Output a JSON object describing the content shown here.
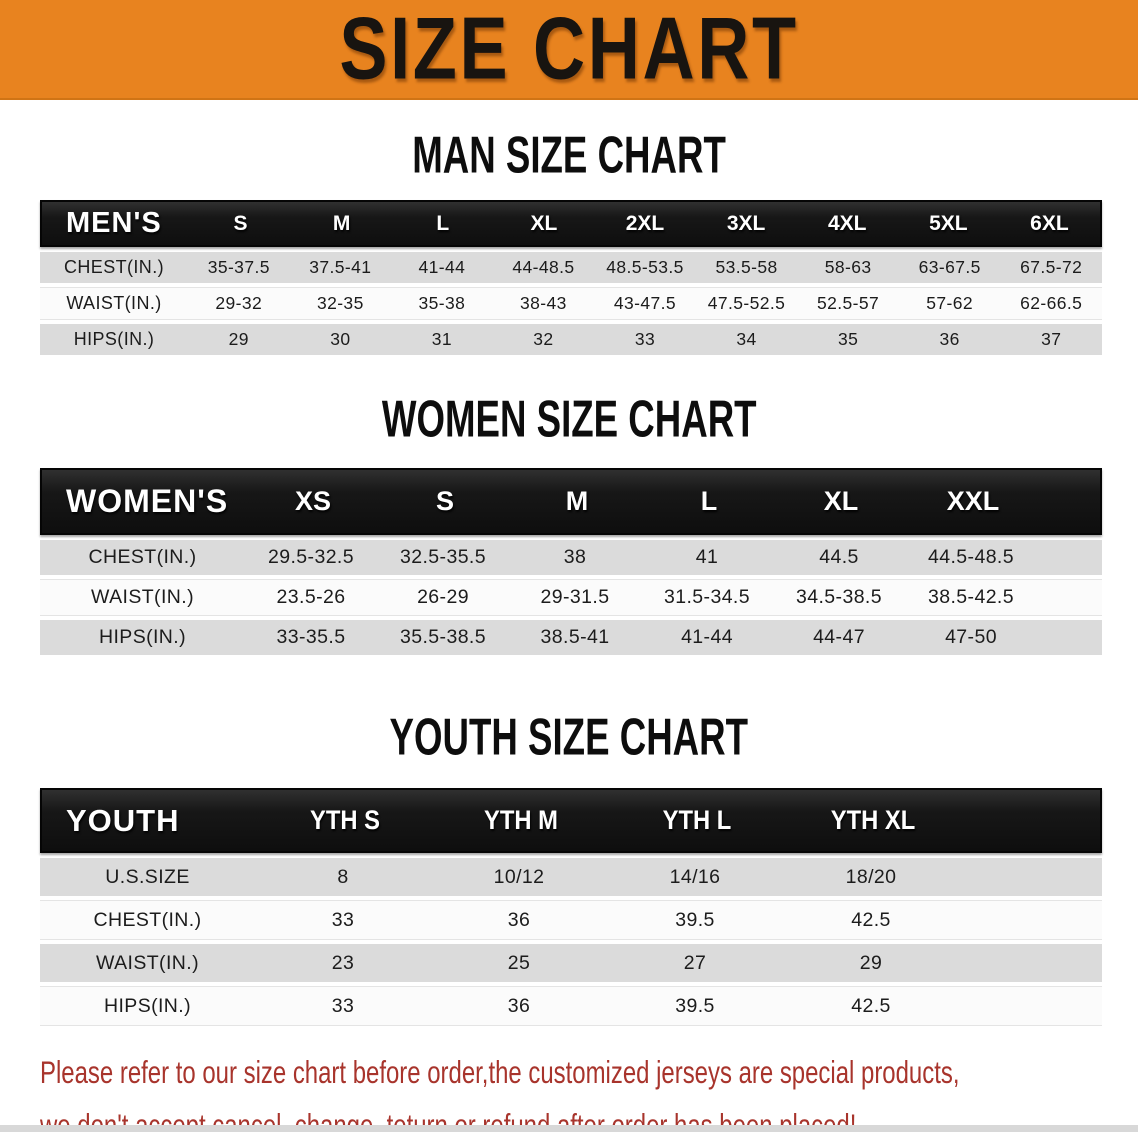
{
  "banner": {
    "title": "SIZE CHART"
  },
  "colors": {
    "banner_bg": "#E8831F",
    "header_bar": "#181818",
    "row_gray": "#DBDBDB",
    "note_red": "#A8342C"
  },
  "sections": [
    {
      "heading": "MAN SIZE CHART",
      "table": {
        "name": "mens",
        "header_label": "MEN'S",
        "columns": [
          "S",
          "M",
          "L",
          "XL",
          "2XL",
          "3XL",
          "4XL",
          "5XL",
          "6XL"
        ],
        "rows": [
          {
            "label": "CHEST(IN.)",
            "values": [
              "35-37.5",
              "37.5-41",
              "41-44",
              "44-48.5",
              "48.5-53.5",
              "53.5-58",
              "58-63",
              "63-67.5",
              "67.5-72"
            ]
          },
          {
            "label": "WAIST(IN.)",
            "values": [
              "29-32",
              "32-35",
              "35-38",
              "38-43",
              "43-47.5",
              "47.5-52.5",
              "52.5-57",
              "57-62",
              "62-66.5"
            ]
          },
          {
            "label": "HIPS(IN.)",
            "values": [
              "29",
              "30",
              "31",
              "32",
              "33",
              "34",
              "35",
              "36",
              "37"
            ]
          }
        ]
      }
    },
    {
      "heading": "WOMEN SIZE CHART",
      "table": {
        "name": "womens",
        "header_label": "WOMEN'S",
        "columns": [
          "XS",
          "S",
          "M",
          "L",
          "XL",
          "XXL"
        ],
        "rows": [
          {
            "label": "CHEST(IN.)",
            "values": [
              "29.5-32.5",
              "32.5-35.5",
              "38",
              "41",
              "44.5",
              "44.5-48.5"
            ]
          },
          {
            "label": "WAIST(IN.)",
            "values": [
              "23.5-26",
              "26-29",
              "29-31.5",
              "31.5-34.5",
              "34.5-38.5",
              "38.5-42.5"
            ]
          },
          {
            "label": "HIPS(IN.)",
            "values": [
              "33-35.5",
              "35.5-38.5",
              "38.5-41",
              "41-44",
              "44-47",
              "47-50"
            ]
          }
        ]
      }
    },
    {
      "heading": "YOUTH SIZE CHART",
      "table": {
        "name": "youth",
        "header_label": "YOUTH",
        "columns": [
          "YTH S",
          "YTH M",
          "YTH L",
          "YTH XL"
        ],
        "rows": [
          {
            "label": "U.S.SIZE",
            "values": [
              "8",
              "10/12",
              "14/16",
              "18/20"
            ]
          },
          {
            "label": "CHEST(IN.)",
            "values": [
              "33",
              "36",
              "39.5",
              "42.5"
            ]
          },
          {
            "label": "WAIST(IN.)",
            "values": [
              "23",
              "25",
              "27",
              "29"
            ]
          },
          {
            "label": "HIPS(IN.)",
            "values": [
              "33",
              "36",
              "39.5",
              "42.5"
            ]
          }
        ]
      }
    }
  ],
  "note": {
    "line1": "Please refer to our size chart before order,the customized jerseys are special products,",
    "line2": "we don't accept cancel, change, teturn or refund after order has been placed!"
  }
}
